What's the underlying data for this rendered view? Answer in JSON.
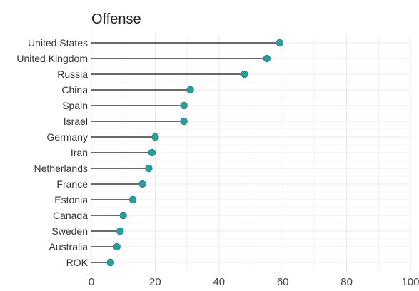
{
  "chart_data": {
    "type": "lollipop",
    "title": "Offense",
    "xlabel": "",
    "ylabel": "",
    "xlim": [
      0,
      100
    ],
    "x_ticks": [
      0,
      20,
      40,
      60,
      80,
      100
    ],
    "grid": true,
    "categories": [
      "United States",
      "United Kingdom",
      "Russia",
      "China",
      "Spain",
      "Israel",
      "Germany",
      "Iran",
      "Netherlands",
      "France",
      "Estonia",
      "Canada",
      "Sweden",
      "Australia",
      "ROK"
    ],
    "values": [
      59,
      55,
      48,
      31,
      29,
      29,
      20,
      19,
      18,
      16,
      13,
      10,
      9,
      8,
      6
    ],
    "colors": {
      "point": "#2a9d9c",
      "stem": "#111111",
      "grid": "#e8e8e8",
      "text": "#333333"
    }
  }
}
